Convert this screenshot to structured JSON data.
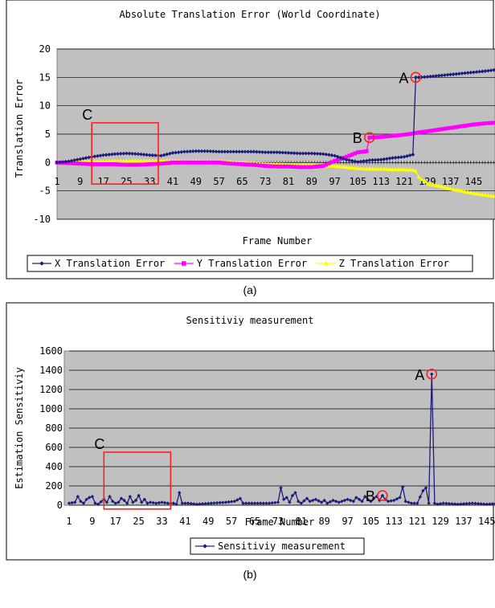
{
  "chart_data": [
    {
      "type": "line",
      "title": "Absolute Translation Error (World Coordinate)",
      "xlabel": "Frame Number",
      "ylabel": "Translation Error",
      "ylim": [
        -10,
        20
      ],
      "yticks": [
        -10,
        -5,
        0,
        5,
        10,
        15,
        20
      ],
      "x_tick_labels": [
        "1",
        "9",
        "17",
        "25",
        "33",
        "41",
        "49",
        "57",
        "65",
        "73",
        "81",
        "89",
        "97",
        "105",
        "113",
        "121",
        "129",
        "137",
        "145"
      ],
      "grid": "horizontal",
      "legend_position": "bottom",
      "x": [
        1,
        5,
        9,
        13,
        17,
        21,
        25,
        29,
        33,
        37,
        41,
        45,
        49,
        53,
        57,
        61,
        65,
        69,
        73,
        77,
        81,
        85,
        89,
        93,
        97,
        101,
        105,
        108,
        109,
        113,
        117,
        121,
        124,
        125,
        126,
        129,
        133,
        137,
        141,
        145,
        149,
        152
      ],
      "series": [
        {
          "name": "X Translation Error",
          "color": "#1c1c7a",
          "marker": "diamond",
          "values": [
            0,
            0.2,
            0.6,
            1.0,
            1.3,
            1.5,
            1.6,
            1.5,
            1.3,
            1.2,
            1.7,
            1.9,
            2.0,
            2.0,
            1.9,
            1.9,
            1.9,
            1.9,
            1.8,
            1.8,
            1.7,
            1.6,
            1.6,
            1.5,
            1.2,
            0.5,
            0.1,
            0.3,
            0.4,
            0.5,
            0.8,
            1.0,
            1.4,
            15,
            15,
            15.1,
            15.3,
            15.5,
            15.7,
            15.9,
            16.1,
            16.3
          ]
        },
        {
          "name": "Y Translation Error",
          "color": "#ff00ff",
          "marker": "square",
          "values": [
            0,
            -0.1,
            -0.2,
            -0.3,
            -0.3,
            -0.3,
            -0.4,
            -0.4,
            -0.3,
            -0.2,
            0,
            0,
            0,
            0,
            0,
            -0.2,
            -0.3,
            -0.4,
            -0.6,
            -0.7,
            -0.7,
            -0.8,
            -0.8,
            -0.6,
            0.3,
            1.0,
            1.8,
            2.0,
            4.4,
            4.5,
            4.7,
            4.9,
            5.1,
            5.2,
            5.3,
            5.5,
            5.8,
            6.1,
            6.4,
            6.7,
            6.9,
            7.0
          ]
        },
        {
          "name": "Z Translation Error",
          "color": "#ffff00",
          "marker": "triangle",
          "values": [
            0,
            0.2,
            0.2,
            0.2,
            0.2,
            0.3,
            0.3,
            0.3,
            0.3,
            0.3,
            0.3,
            0.2,
            0.2,
            0.2,
            0.2,
            0.1,
            0,
            -0.1,
            -0.2,
            -0.3,
            -0.4,
            -0.4,
            -0.4,
            -0.5,
            -0.6,
            -0.8,
            -1.0,
            -1.1,
            -1.1,
            -1.1,
            -1.2,
            -1.2,
            -1.3,
            -1.5,
            -2.5,
            -3.7,
            -4.1,
            -4.6,
            -5.0,
            -5.4,
            -5.7,
            -5.9
          ]
        }
      ],
      "annotations": [
        {
          "label": "A",
          "x": 125,
          "y": 15
        },
        {
          "label": "B",
          "x": 109,
          "y": 4.4
        },
        {
          "label": "C",
          "box_x": [
            13,
            36
          ],
          "box_y": [
            -3.8,
            7
          ]
        }
      ],
      "caption": "(a)"
    },
    {
      "type": "line",
      "title": "Sensitiviy measurement",
      "xlabel": "Frame Number",
      "ylabel": "Estimation Sensitiviy",
      "ylim": [
        0,
        1600
      ],
      "yticks": [
        0,
        200,
        400,
        600,
        800,
        1000,
        1200,
        1400,
        1600
      ],
      "x_tick_labels": [
        "1",
        "9",
        "17",
        "25",
        "33",
        "41",
        "49",
        "57",
        "65",
        "73",
        "81",
        "89",
        "97",
        "105",
        "113",
        "121",
        "129",
        "137",
        "145"
      ],
      "grid": "horizontal",
      "legend_position": "bottom",
      "series": [
        {
          "name": "Sensitiviy measurement",
          "color": "#1c1c7a",
          "marker": "diamond",
          "points": [
            [
              1,
              20
            ],
            [
              3,
              30
            ],
            [
              4,
              90
            ],
            [
              5,
              40
            ],
            [
              6,
              20
            ],
            [
              7,
              60
            ],
            [
              8,
              80
            ],
            [
              9,
              90
            ],
            [
              10,
              20
            ],
            [
              11,
              10
            ],
            [
              13,
              60
            ],
            [
              14,
              30
            ],
            [
              15,
              90
            ],
            [
              16,
              40
            ],
            [
              17,
              20
            ],
            [
              18,
              30
            ],
            [
              19,
              70
            ],
            [
              20,
              50
            ],
            [
              21,
              20
            ],
            [
              22,
              90
            ],
            [
              23,
              30
            ],
            [
              24,
              50
            ],
            [
              25,
              100
            ],
            [
              26,
              30
            ],
            [
              27,
              60
            ],
            [
              28,
              20
            ],
            [
              29,
              30
            ],
            [
              31,
              20
            ],
            [
              33,
              30
            ],
            [
              35,
              20
            ],
            [
              37,
              20
            ],
            [
              38,
              10
            ],
            [
              39,
              130
            ],
            [
              40,
              20
            ],
            [
              42,
              20
            ],
            [
              45,
              10
            ],
            [
              50,
              20
            ],
            [
              55,
              30
            ],
            [
              58,
              40
            ],
            [
              60,
              70
            ],
            [
              61,
              20
            ],
            [
              65,
              20
            ],
            [
              70,
              20
            ],
            [
              73,
              30
            ],
            [
              74,
              180
            ],
            [
              75,
              60
            ],
            [
              76,
              80
            ],
            [
              77,
              30
            ],
            [
              78,
              100
            ],
            [
              79,
              130
            ],
            [
              80,
              40
            ],
            [
              81,
              20
            ],
            [
              83,
              70
            ],
            [
              84,
              40
            ],
            [
              86,
              60
            ],
            [
              88,
              30
            ],
            [
              89,
              50
            ],
            [
              90,
              20
            ],
            [
              92,
              50
            ],
            [
              94,
              30
            ],
            [
              97,
              60
            ],
            [
              99,
              40
            ],
            [
              100,
              80
            ],
            [
              101,
              60
            ],
            [
              102,
              40
            ],
            [
              103,
              90
            ],
            [
              104,
              60
            ],
            [
              105,
              40
            ],
            [
              106,
              70
            ],
            [
              107,
              90
            ],
            [
              108,
              50
            ],
            [
              109,
              100
            ],
            [
              110,
              60
            ],
            [
              111,
              40
            ],
            [
              113,
              50
            ],
            [
              115,
              80
            ],
            [
              116,
              190
            ],
            [
              117,
              40
            ],
            [
              119,
              20
            ],
            [
              121,
              20
            ],
            [
              123,
              150
            ],
            [
              124,
              180
            ],
            [
              125,
              20
            ],
            [
              126,
              1360
            ],
            [
              127,
              20
            ],
            [
              128,
              10
            ],
            [
              130,
              20
            ],
            [
              135,
              10
            ],
            [
              140,
              20
            ],
            [
              145,
              10
            ],
            [
              150,
              20
            ],
            [
              152,
              20
            ]
          ]
        }
      ],
      "annotations": [
        {
          "label": "A",
          "x": 126,
          "y": 1360
        },
        {
          "label": "B",
          "x": 109,
          "y": 100
        },
        {
          "label": "C",
          "box_x": [
            13,
            36
          ],
          "box_y": [
            -40,
            550
          ]
        }
      ],
      "caption": "(b)"
    }
  ]
}
